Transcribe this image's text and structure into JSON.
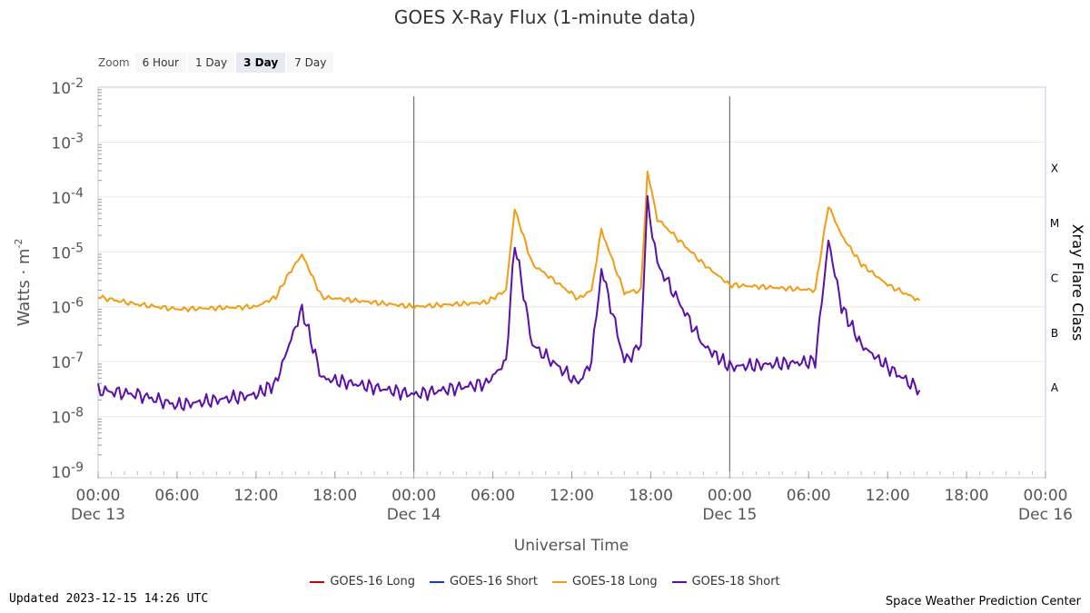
{
  "chart_data": {
    "type": "line",
    "title": "GOES X-Ray Flux (1-minute data)",
    "xlabel": "Universal Time",
    "ylabel": "Watts · m",
    "ylabel_exponent": "-2",
    "y2label": "Xray Flare Class",
    "yscale": "log",
    "ylim": [
      1e-09,
      0.01
    ],
    "xlim": [
      "2023-12-13 00:00",
      "2023-12-16 00:00"
    ],
    "y_ticks": [
      {
        "base": "10",
        "exp": "-2"
      },
      {
        "base": "10",
        "exp": "-3"
      },
      {
        "base": "10",
        "exp": "-4"
      },
      {
        "base": "10",
        "exp": "-5"
      },
      {
        "base": "10",
        "exp": "-6"
      },
      {
        "base": "10",
        "exp": "-7"
      },
      {
        "base": "10",
        "exp": "-8"
      },
      {
        "base": "10",
        "exp": "-9"
      }
    ],
    "x_ticks": [
      {
        "time": "00:00",
        "date": "Dec 13"
      },
      {
        "time": "06:00",
        "date": ""
      },
      {
        "time": "12:00",
        "date": ""
      },
      {
        "time": "18:00",
        "date": ""
      },
      {
        "time": "00:00",
        "date": "Dec 14"
      },
      {
        "time": "06:00",
        "date": ""
      },
      {
        "time": "12:00",
        "date": ""
      },
      {
        "time": "18:00",
        "date": ""
      },
      {
        "time": "00:00",
        "date": "Dec 15"
      },
      {
        "time": "06:00",
        "date": ""
      },
      {
        "time": "12:00",
        "date": ""
      },
      {
        "time": "18:00",
        "date": ""
      },
      {
        "time": "00:00",
        "date": "Dec 16"
      }
    ],
    "flare_classes": [
      "X",
      "M",
      "C",
      "B",
      "A"
    ],
    "grid": true,
    "legend_position": "bottom",
    "series": [
      {
        "name": "GOES-18 Long",
        "color": "#f39c12",
        "x": [
          "2023-12-13 00:00",
          "2023-12-13 03:00",
          "2023-12-13 06:00",
          "2023-12-13 12:00",
          "2023-12-13 13:30",
          "2023-12-13 14:30",
          "2023-12-13 15:30",
          "2023-12-13 17:00",
          "2023-12-14 00:00",
          "2023-12-14 05:30",
          "2023-12-14 07:00",
          "2023-12-14 07:40",
          "2023-12-14 09:00",
          "2023-12-14 12:30",
          "2023-12-14 13:30",
          "2023-12-14 14:15",
          "2023-12-14 16:00",
          "2023-12-14 17:15",
          "2023-12-14 17:45",
          "2023-12-14 18:30",
          "2023-12-14 22:00",
          "2023-12-15 00:00",
          "2023-12-15 06:30",
          "2023-12-15 07:30",
          "2023-12-15 08:30",
          "2023-12-15 10:00",
          "2023-12-15 12:00",
          "2023-12-15 14:26"
        ],
        "values": [
          1.5e-06,
          1.1e-06,
          9e-07,
          1e-06,
          1.5e-06,
          4e-06,
          9e-06,
          1.5e-06,
          1e-06,
          1.2e-06,
          2e-06,
          6e-05,
          6e-06,
          1.4e-06,
          2e-06,
          2.5e-05,
          1.8e-06,
          2e-06,
          0.00028,
          4e-05,
          6e-06,
          2.5e-06,
          2e-06,
          7e-05,
          2e-05,
          6e-06,
          2.5e-06,
          1.3e-06
        ]
      },
      {
        "name": "GOES-18 Short",
        "color": "#5b0fa8",
        "x": [
          "2023-12-13 00:00",
          "2023-12-13 03:00",
          "2023-12-13 06:00",
          "2023-12-13 12:00",
          "2023-12-13 13:30",
          "2023-12-13 14:30",
          "2023-12-13 15:30",
          "2023-12-13 17:00",
          "2023-12-14 00:00",
          "2023-12-14 05:30",
          "2023-12-14 07:00",
          "2023-12-14 07:40",
          "2023-12-14 09:00",
          "2023-12-14 12:30",
          "2023-12-14 13:30",
          "2023-12-14 14:15",
          "2023-12-14 16:00",
          "2023-12-14 17:15",
          "2023-12-14 17:45",
          "2023-12-14 18:30",
          "2023-12-14 22:00",
          "2023-12-15 00:00",
          "2023-12-15 06:30",
          "2023-12-15 07:30",
          "2023-12-15 08:30",
          "2023-12-15 10:00",
          "2023-12-15 12:00",
          "2023-12-15 14:26"
        ],
        "values": [
          3e-08,
          2.5e-08,
          1.6e-08,
          2.5e-08,
          4e-08,
          2e-07,
          9e-07,
          5e-08,
          2.5e-08,
          4e-08,
          1e-07,
          1.5e-05,
          2e-07,
          4e-08,
          1e-07,
          5e-06,
          1e-07,
          2e-07,
          9e-05,
          6e-06,
          2e-07,
          8e-08,
          1e-07,
          1.6e-05,
          1e-06,
          2e-07,
          8e-08,
          3e-08
        ]
      }
    ]
  },
  "zoom": {
    "label": "Zoom",
    "buttons": [
      "6 Hour",
      "1 Day",
      "3 Day",
      "7 Day"
    ],
    "active_index": 2
  },
  "legend": [
    {
      "label": "GOES-16 Long",
      "color": "#cc0000"
    },
    {
      "label": "GOES-16 Short",
      "color": "#2233cc"
    },
    {
      "label": "GOES-18 Long",
      "color": "#f39c12"
    },
    {
      "label": "GOES-18 Short",
      "color": "#5b0fa8"
    }
  ],
  "footer": {
    "updated": "Updated 2023-12-15 14:26 UTC",
    "credit": "Space Weather Prediction Center"
  }
}
